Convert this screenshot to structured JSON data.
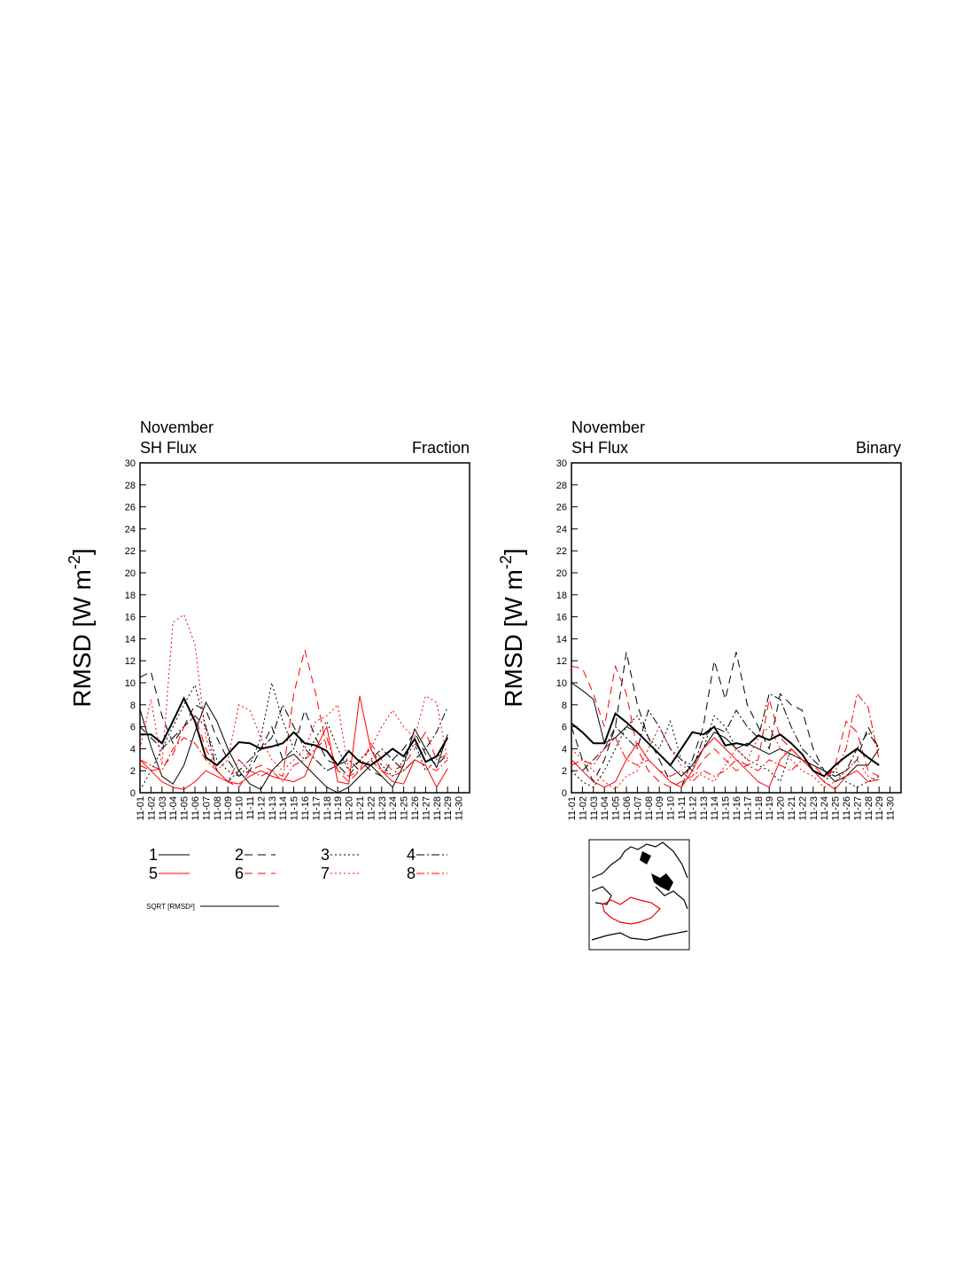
{
  "chart_data": [
    {
      "type": "line",
      "title": "November",
      "subtitle": "SH Flux",
      "corner_label": "Fraction",
      "y_label": {
        "text": "RMSD [W m",
        "sup": "-2",
        "end": "]"
      },
      "categories": [
        "11-01",
        "11-02",
        "11-03",
        "11-04",
        "11-05",
        "11-06",
        "11-07",
        "11-08",
        "11-09",
        "11-10",
        "11-11",
        "11-12",
        "11-13",
        "11-14",
        "11-15",
        "11-16",
        "11-17",
        "11-18",
        "11-19",
        "11-20",
        "11-21",
        "11-22",
        "11-23",
        "11-24",
        "11-25",
        "11-26",
        "11-27",
        "11-28",
        "11-29",
        "11-30"
      ],
      "ylim": [
        0,
        30
      ],
      "yticks": [
        0,
        2,
        4,
        6,
        8,
        10,
        12,
        14,
        16,
        18,
        20,
        22,
        24,
        26,
        28,
        30
      ],
      "legend": true,
      "series": [
        {
          "name": "1",
          "color": "#000000",
          "dash": "",
          "values": [
            7.6,
            4.2,
            1.5,
            0.8,
            2.5,
            5.5,
            8.2,
            6.5,
            4,
            2,
            0.8,
            0.3,
            2,
            3,
            3.5,
            2.5,
            1.5,
            0.5,
            0,
            0.5,
            1.5,
            2.5,
            1.5,
            0.5,
            2.5,
            5.8,
            4,
            2.3,
            5.3,
            null
          ]
        },
        {
          "name": "2",
          "color": "#000000",
          "dash": "9,6",
          "values": [
            10.5,
            11,
            7,
            4.5,
            6,
            8,
            7.5,
            5,
            3,
            1.5,
            2,
            4,
            6,
            3,
            4,
            7.5,
            5,
            3,
            2.5,
            1.5,
            3,
            2,
            1.5,
            3,
            4,
            5.5,
            3.5,
            2.5,
            3.5,
            null
          ]
        },
        {
          "name": "3",
          "color": "#000000",
          "dash": "2,3",
          "values": [
            0.2,
            2,
            4,
            6,
            8,
            9.8,
            6,
            3,
            2,
            1.5,
            2.5,
            5,
            10,
            6.5,
            4,
            3,
            5,
            6.5,
            4,
            2,
            3,
            4,
            2.5,
            1.5,
            3,
            4.5,
            2,
            3,
            5,
            null
          ]
        },
        {
          "name": "4",
          "color": "#000000",
          "dash": "9,3,2,3",
          "values": [
            6,
            5,
            4,
            5,
            6,
            7,
            6,
            2,
            1,
            2,
            3,
            4,
            5,
            8,
            6,
            4,
            3,
            2,
            2.5,
            3,
            2,
            3,
            4,
            3,
            2,
            3,
            4,
            5.5,
            7.8,
            null
          ]
        },
        {
          "name": "5",
          "color": "#ff0000",
          "dash": "",
          "values": [
            3,
            2,
            1,
            0.5,
            0.3,
            1,
            2,
            1.5,
            1,
            0.8,
            1.5,
            2,
            1.5,
            1.2,
            1,
            1.5,
            4,
            6,
            1,
            0.8,
            8.8,
            4,
            2,
            1,
            0.8,
            3,
            2.5,
            0.5,
            2.2,
            null
          ]
        },
        {
          "name": "6",
          "color": "#ff0000",
          "dash": "9,6",
          "values": [
            2.5,
            2,
            2.2,
            3.5,
            6,
            7,
            4,
            2,
            1,
            0.5,
            2,
            2.5,
            2,
            1.5,
            9,
            13,
            9,
            4,
            2,
            1,
            2,
            4.5,
            3,
            2,
            2.5,
            4,
            5.5,
            3,
            3.5,
            null
          ]
        },
        {
          "name": "7",
          "color": "#ff0000",
          "dash": "2,3",
          "values": [
            4,
            8.5,
            2.5,
            15.5,
            16.2,
            13.5,
            5,
            2,
            3,
            8,
            7.5,
            5,
            3,
            2,
            3,
            4,
            6.5,
            7,
            8,
            2,
            3,
            4,
            6,
            7.5,
            6,
            5,
            8.8,
            8.2,
            3,
            null
          ]
        },
        {
          "name": "8",
          "color": "#ff0000",
          "dash": "9,3,2,3",
          "values": [
            3,
            2.5,
            2,
            4,
            5,
            4.5,
            3,
            2,
            1,
            3,
            2,
            1.5,
            2,
            1,
            2.5,
            3,
            4,
            5,
            2,
            1.5,
            2,
            3,
            2,
            1.5,
            2,
            3,
            2.5,
            2,
            3,
            null
          ]
        },
        {
          "name": "SQRT [RMSD²]",
          "color": "#000000",
          "dash": "",
          "width": 2,
          "values": [
            5.3,
            5.3,
            4.5,
            6.5,
            8.6,
            6.5,
            3.2,
            2.5,
            3.5,
            4.6,
            4.5,
            4,
            4.2,
            4.5,
            5.5,
            4.5,
            4.3,
            3.8,
            2.5,
            3.8,
            2.8,
            2.5,
            3.2,
            4,
            3.3,
            4.9,
            2.8,
            3.3,
            5,
            null
          ]
        }
      ]
    },
    {
      "type": "line",
      "title": "November",
      "subtitle": "SH Flux",
      "corner_label": "Binary",
      "y_label": {
        "text": "RMSD [W m",
        "sup": "-2",
        "end": "]"
      },
      "categories": [
        "11-01",
        "11-02",
        "11-03",
        "11-04",
        "11-05",
        "11-06",
        "11-07",
        "11-08",
        "11-09",
        "11-10",
        "11-11",
        "11-12",
        "11-13",
        "11-14",
        "11-15",
        "11-16",
        "11-17",
        "11-18",
        "11-19",
        "11-20",
        "11-21",
        "11-22",
        "11-23",
        "11-24",
        "11-25",
        "11-26",
        "11-27",
        "11-28",
        "11-29",
        "11-30"
      ],
      "ylim": [
        0,
        30
      ],
      "yticks": [
        0,
        2,
        4,
        6,
        8,
        10,
        12,
        14,
        16,
        18,
        20,
        22,
        24,
        26,
        28,
        30
      ],
      "legend": false,
      "series": [
        {
          "name": "1",
          "color": "#000000",
          "dash": "",
          "values": [
            10,
            9.3,
            8.5,
            4.5,
            5,
            6,
            5.5,
            4.5,
            3.5,
            2.5,
            1.5,
            2.5,
            4,
            5.5,
            5,
            4,
            4.5,
            4,
            3.5,
            4,
            3.5,
            3,
            2.5,
            2,
            1,
            1.5,
            2.5,
            2.5,
            4,
            null
          ]
        },
        {
          "name": "2",
          "color": "#000000",
          "dash": "9,6",
          "values": [
            6,
            3,
            1,
            3,
            6,
            12.8,
            8,
            5,
            3,
            1,
            0.5,
            3,
            6,
            12,
            8.5,
            12.8,
            8,
            6,
            4,
            9,
            8,
            7.5,
            4,
            2,
            1.5,
            2,
            3,
            6,
            4,
            null
          ]
        },
        {
          "name": "3",
          "color": "#000000",
          "dash": "2,3",
          "values": [
            2,
            1,
            0.5,
            2,
            4,
            6,
            7,
            5,
            4,
            6.5,
            3,
            2.5,
            4,
            7,
            6,
            4,
            3,
            2.5,
            2,
            1,
            4,
            3,
            2,
            1,
            2,
            1,
            0.5,
            1,
            1.5,
            null
          ]
        },
        {
          "name": "4",
          "color": "#000000",
          "dash": "9,3,2,3",
          "values": [
            3,
            2,
            3,
            4,
            6,
            5,
            4,
            7.5,
            6,
            4,
            3,
            2,
            5,
            6,
            5.5,
            7.5,
            6,
            5,
            9,
            8.5,
            6,
            4,
            3,
            2,
            1.5,
            2,
            4,
            5.5,
            4,
            null
          ]
        },
        {
          "name": "5",
          "color": "#ff0000",
          "dash": "",
          "values": [
            3,
            2,
            1,
            0.5,
            1,
            3,
            4.5,
            3,
            2,
            1,
            0.5,
            2,
            4,
            5,
            4,
            3,
            2,
            1,
            0.5,
            3,
            4,
            3,
            2,
            1,
            0.3,
            1.5,
            2,
            1,
            1.2,
            null
          ]
        },
        {
          "name": "6",
          "color": "#ff0000",
          "dash": "9,6",
          "values": [
            11.5,
            11.3,
            9,
            6,
            11.5,
            9,
            4,
            2,
            1,
            0.5,
            1,
            1.5,
            3,
            4,
            3,
            2,
            2.5,
            3,
            8.5,
            5,
            4,
            3,
            2,
            1,
            2.5,
            6.5,
            5.5,
            2,
            1.5,
            null
          ]
        },
        {
          "name": "7",
          "color": "#ff0000",
          "dash": "2,3",
          "values": [
            4,
            3,
            2,
            1,
            0.3,
            1.5,
            2,
            4,
            6,
            4,
            2.5,
            2,
            1.5,
            1,
            2.5,
            4,
            3,
            5,
            6,
            4,
            3,
            2,
            1.5,
            0.5,
            1,
            2,
            3,
            1.5,
            1,
            null
          ]
        },
        {
          "name": "8",
          "color": "#ff0000",
          "dash": "9,3,2,3",
          "values": [
            2.5,
            3,
            2.5,
            4,
            5,
            3,
            2.5,
            3,
            2,
            1.5,
            2,
            1,
            2,
            1.5,
            2,
            3,
            2.5,
            2,
            3,
            2.5,
            2,
            3,
            2.5,
            1.5,
            2,
            4,
            9,
            7.8,
            3,
            null
          ]
        },
        {
          "name": "SQRT [RMSD²]",
          "color": "#000000",
          "dash": "",
          "width": 2,
          "values": [
            6.3,
            5.5,
            4.5,
            4.5,
            7.2,
            6.4,
            5.5,
            4.5,
            3.5,
            2.5,
            4,
            5.5,
            5.3,
            6,
            4.3,
            4.5,
            4.3,
            5.2,
            4.8,
            5.3,
            4.5,
            3.5,
            2,
            1.5,
            2.5,
            3.3,
            4,
            3.2,
            2.5,
            null
          ]
        }
      ]
    }
  ]
}
